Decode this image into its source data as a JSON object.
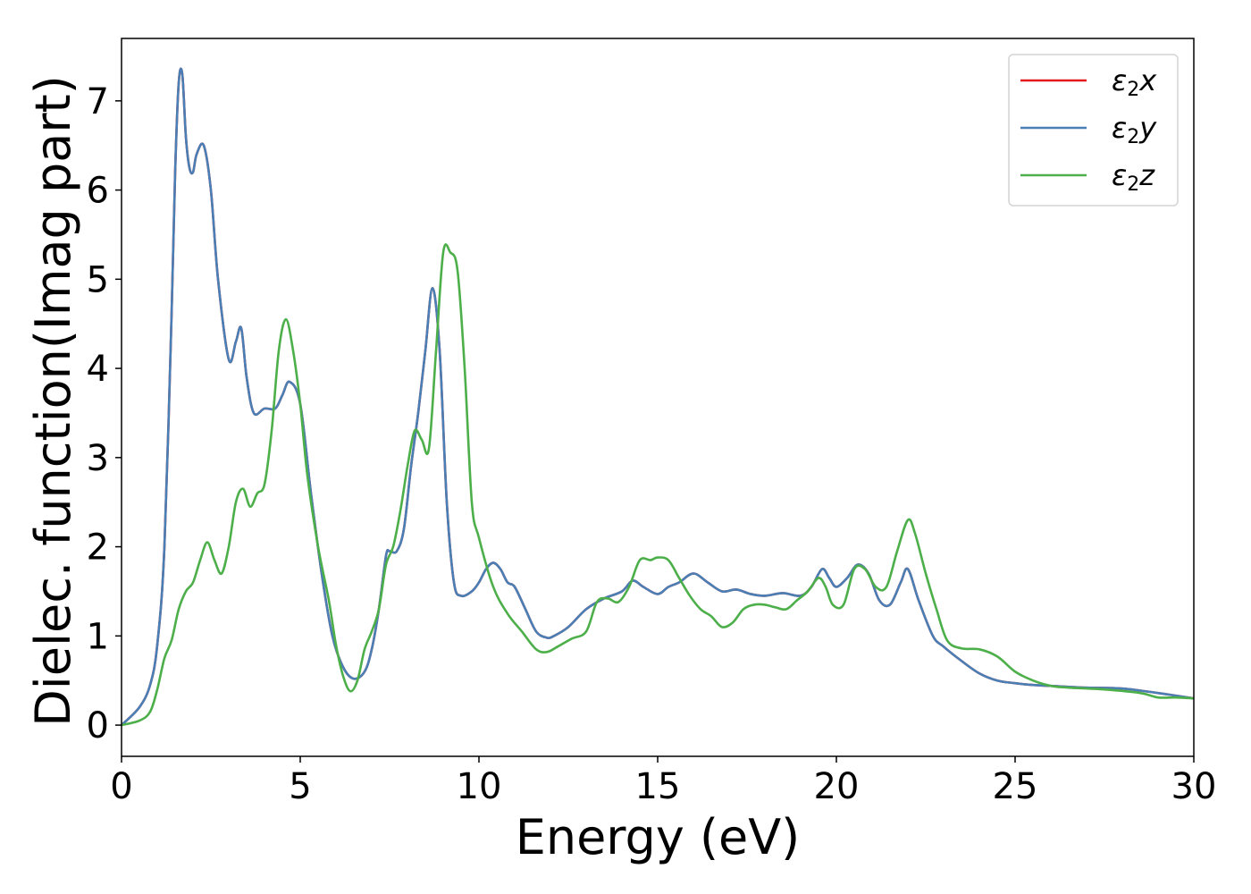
{
  "chart_data": {
    "type": "line",
    "title": "",
    "xlabel": "Energy (eV)",
    "ylabel": "Dielec. function(Imag part)",
    "xlim": [
      0,
      30
    ],
    "ylim": [
      -0.35,
      7.7
    ],
    "xticks": [
      0,
      5,
      10,
      15,
      20,
      25,
      30
    ],
    "yticks": [
      0,
      1,
      2,
      3,
      4,
      5,
      6,
      7
    ],
    "grid": false,
    "legend_position": "top-right",
    "series": [
      {
        "name": "ε2x",
        "legend": {
          "base": "ε",
          "sub": "2",
          "tail": "x"
        },
        "color": "#e41a1c",
        "x": [
          0,
          0.5,
          0.8,
          1.0,
          1.2,
          1.4,
          1.5,
          1.6,
          1.7,
          1.8,
          1.9,
          2.0,
          2.1,
          2.3,
          2.5,
          2.7,
          3.0,
          3.2,
          3.35,
          3.5,
          3.7,
          4.0,
          4.3,
          4.5,
          4.7,
          5.0,
          5.3,
          5.6,
          5.9,
          6.2,
          6.5,
          6.8,
          7.0,
          7.2,
          7.4,
          7.5,
          7.7,
          7.9,
          8.1,
          8.3,
          8.5,
          8.7,
          8.9,
          9.1,
          9.3,
          9.5,
          9.8,
          10.0,
          10.2,
          10.4,
          10.6,
          10.8,
          11.0,
          11.3,
          11.6,
          11.9,
          12.1,
          12.5,
          13.0,
          13.5,
          14.0,
          14.3,
          14.6,
          15.0,
          15.3,
          15.6,
          16.0,
          16.4,
          16.8,
          17.2,
          17.6,
          18.0,
          18.5,
          19.0,
          19.3,
          19.6,
          19.8,
          20.0,
          20.3,
          20.6,
          20.9,
          21.2,
          21.5,
          21.8,
          22.0,
          22.3,
          22.7,
          23.0,
          23.5,
          24.0,
          24.5,
          25.0,
          25.5,
          26.0,
          27.0,
          28.0,
          29.0,
          29.5,
          30.0
        ],
        "y": [
          0.0,
          0.2,
          0.45,
          0.9,
          2.0,
          4.6,
          6.2,
          7.2,
          7.3,
          6.6,
          6.25,
          6.2,
          6.4,
          6.5,
          6.0,
          5.0,
          4.1,
          4.3,
          4.45,
          3.9,
          3.5,
          3.55,
          3.55,
          3.7,
          3.85,
          3.6,
          2.6,
          1.7,
          1.0,
          0.65,
          0.52,
          0.6,
          0.85,
          1.3,
          1.9,
          1.95,
          1.95,
          2.2,
          2.9,
          3.5,
          4.2,
          4.9,
          4.2,
          2.5,
          1.6,
          1.45,
          1.5,
          1.6,
          1.75,
          1.82,
          1.75,
          1.6,
          1.55,
          1.3,
          1.05,
          0.98,
          1.0,
          1.1,
          1.3,
          1.42,
          1.5,
          1.62,
          1.55,
          1.47,
          1.55,
          1.6,
          1.7,
          1.6,
          1.5,
          1.52,
          1.47,
          1.45,
          1.48,
          1.45,
          1.55,
          1.75,
          1.65,
          1.55,
          1.65,
          1.8,
          1.7,
          1.4,
          1.35,
          1.6,
          1.75,
          1.4,
          1.0,
          0.88,
          0.72,
          0.58,
          0.5,
          0.47,
          0.45,
          0.44,
          0.42,
          0.41,
          0.36,
          0.33,
          0.3
        ]
      },
      {
        "name": "ε2y",
        "legend": {
          "base": "ε",
          "sub": "2",
          "tail": "y"
        },
        "color": "#4a7fb5",
        "x": [
          0,
          0.5,
          0.8,
          1.0,
          1.2,
          1.4,
          1.5,
          1.6,
          1.7,
          1.8,
          1.9,
          2.0,
          2.1,
          2.3,
          2.5,
          2.7,
          3.0,
          3.2,
          3.35,
          3.5,
          3.7,
          4.0,
          4.3,
          4.5,
          4.7,
          5.0,
          5.3,
          5.6,
          5.9,
          6.2,
          6.5,
          6.8,
          7.0,
          7.2,
          7.4,
          7.5,
          7.7,
          7.9,
          8.1,
          8.3,
          8.5,
          8.7,
          8.9,
          9.1,
          9.3,
          9.5,
          9.8,
          10.0,
          10.2,
          10.4,
          10.6,
          10.8,
          11.0,
          11.3,
          11.6,
          11.9,
          12.1,
          12.5,
          13.0,
          13.5,
          14.0,
          14.3,
          14.6,
          15.0,
          15.3,
          15.6,
          16.0,
          16.4,
          16.8,
          17.2,
          17.6,
          18.0,
          18.5,
          19.0,
          19.3,
          19.6,
          19.8,
          20.0,
          20.3,
          20.6,
          20.9,
          21.2,
          21.5,
          21.8,
          22.0,
          22.3,
          22.7,
          23.0,
          23.5,
          24.0,
          24.5,
          25.0,
          25.5,
          26.0,
          27.0,
          28.0,
          29.0,
          29.5,
          30.0
        ],
        "y": [
          0.0,
          0.2,
          0.45,
          0.9,
          2.0,
          4.6,
          6.2,
          7.2,
          7.3,
          6.6,
          6.25,
          6.2,
          6.4,
          6.5,
          6.0,
          5.0,
          4.1,
          4.3,
          4.45,
          3.9,
          3.5,
          3.55,
          3.55,
          3.7,
          3.85,
          3.6,
          2.6,
          1.7,
          1.0,
          0.65,
          0.52,
          0.6,
          0.85,
          1.3,
          1.9,
          1.95,
          1.95,
          2.2,
          2.9,
          3.5,
          4.2,
          4.9,
          4.2,
          2.5,
          1.6,
          1.45,
          1.5,
          1.6,
          1.75,
          1.82,
          1.75,
          1.6,
          1.55,
          1.3,
          1.05,
          0.98,
          1.0,
          1.1,
          1.3,
          1.42,
          1.5,
          1.62,
          1.55,
          1.47,
          1.55,
          1.6,
          1.7,
          1.6,
          1.5,
          1.52,
          1.47,
          1.45,
          1.48,
          1.45,
          1.55,
          1.75,
          1.65,
          1.55,
          1.65,
          1.8,
          1.7,
          1.4,
          1.35,
          1.6,
          1.75,
          1.4,
          1.0,
          0.88,
          0.72,
          0.58,
          0.5,
          0.47,
          0.45,
          0.44,
          0.42,
          0.41,
          0.36,
          0.33,
          0.3
        ]
      },
      {
        "name": "ε2z",
        "legend": {
          "base": "ε",
          "sub": "2",
          "tail": "z"
        },
        "color": "#4daf4a",
        "x": [
          0,
          0.5,
          0.8,
          1.0,
          1.2,
          1.4,
          1.6,
          1.8,
          2.0,
          2.2,
          2.4,
          2.6,
          2.8,
          3.0,
          3.2,
          3.4,
          3.6,
          3.8,
          4.0,
          4.2,
          4.4,
          4.6,
          4.8,
          5.0,
          5.2,
          5.5,
          5.8,
          6.0,
          6.2,
          6.4,
          6.6,
          6.8,
          7.0,
          7.2,
          7.4,
          7.6,
          7.8,
          8.0,
          8.2,
          8.4,
          8.6,
          8.8,
          9.0,
          9.2,
          9.4,
          9.6,
          9.8,
          10.0,
          10.4,
          10.8,
          11.2,
          11.6,
          11.9,
          12.2,
          12.6,
          13.0,
          13.3,
          13.6,
          13.9,
          14.2,
          14.5,
          14.8,
          15.0,
          15.3,
          15.6,
          15.9,
          16.2,
          16.5,
          16.8,
          17.1,
          17.4,
          17.7,
          18.0,
          18.3,
          18.6,
          18.9,
          19.2,
          19.5,
          19.7,
          19.9,
          20.2,
          20.5,
          20.8,
          21.1,
          21.4,
          21.7,
          22.0,
          22.2,
          22.5,
          22.8,
          23.1,
          23.5,
          24.0,
          24.5,
          25.0,
          25.5,
          26.0,
          26.5,
          27.5,
          28.5,
          29.0,
          29.5,
          30.0
        ],
        "y": [
          0.0,
          0.05,
          0.15,
          0.4,
          0.75,
          0.95,
          1.3,
          1.5,
          1.6,
          1.85,
          2.05,
          1.85,
          1.7,
          2.0,
          2.5,
          2.65,
          2.45,
          2.6,
          2.7,
          3.3,
          4.2,
          4.55,
          4.2,
          3.6,
          2.8,
          2.0,
          1.4,
          0.9,
          0.55,
          0.38,
          0.5,
          0.85,
          1.05,
          1.3,
          1.8,
          2.0,
          2.4,
          2.9,
          3.3,
          3.2,
          3.1,
          4.2,
          5.3,
          5.3,
          5.1,
          4.0,
          2.5,
          2.1,
          1.55,
          1.25,
          1.05,
          0.85,
          0.82,
          0.88,
          0.97,
          1.05,
          1.38,
          1.42,
          1.38,
          1.55,
          1.85,
          1.85,
          1.88,
          1.85,
          1.65,
          1.45,
          1.3,
          1.22,
          1.1,
          1.15,
          1.3,
          1.35,
          1.35,
          1.32,
          1.3,
          1.4,
          1.5,
          1.65,
          1.55,
          1.35,
          1.35,
          1.75,
          1.75,
          1.55,
          1.55,
          1.95,
          2.3,
          2.15,
          1.7,
          1.3,
          0.95,
          0.86,
          0.85,
          0.77,
          0.6,
          0.5,
          0.44,
          0.42,
          0.4,
          0.36,
          0.31,
          0.31,
          0.3
        ]
      }
    ]
  }
}
